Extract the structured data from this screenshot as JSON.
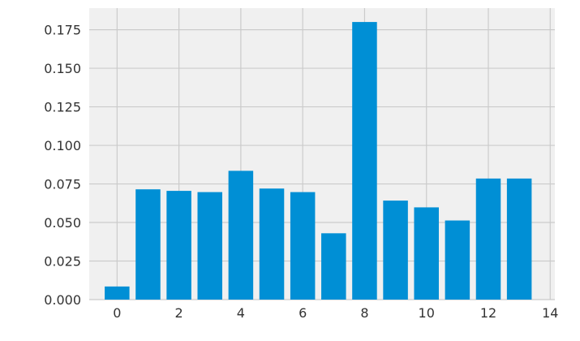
{
  "chart_data": {
    "type": "bar",
    "title": "",
    "xlabel": "",
    "ylabel": "",
    "x": [
      0,
      1,
      2,
      3,
      4,
      5,
      6,
      7,
      8,
      9,
      10,
      11,
      12,
      13
    ],
    "values": [
      0.0085,
      0.0715,
      0.0705,
      0.0697,
      0.0835,
      0.072,
      0.0697,
      0.043,
      0.18,
      0.0642,
      0.0598,
      0.0513,
      0.0785,
      0.0785
    ],
    "xlim": [
      -0.9,
      14.15
    ],
    "ylim": [
      0,
      0.189
    ],
    "x_ticks": [
      "0",
      "2",
      "4",
      "6",
      "8",
      "10",
      "12",
      "14"
    ],
    "y_ticks": [
      "0.000",
      "0.025",
      "0.050",
      "0.075",
      "0.100",
      "0.125",
      "0.150",
      "0.175"
    ],
    "grid": true,
    "colors": {
      "bar": "#008fd5",
      "plot_background": "#f0f0f0",
      "figure_background": "#ffffff",
      "grid": "#cbcbcb",
      "tick_text": "#333333"
    }
  }
}
